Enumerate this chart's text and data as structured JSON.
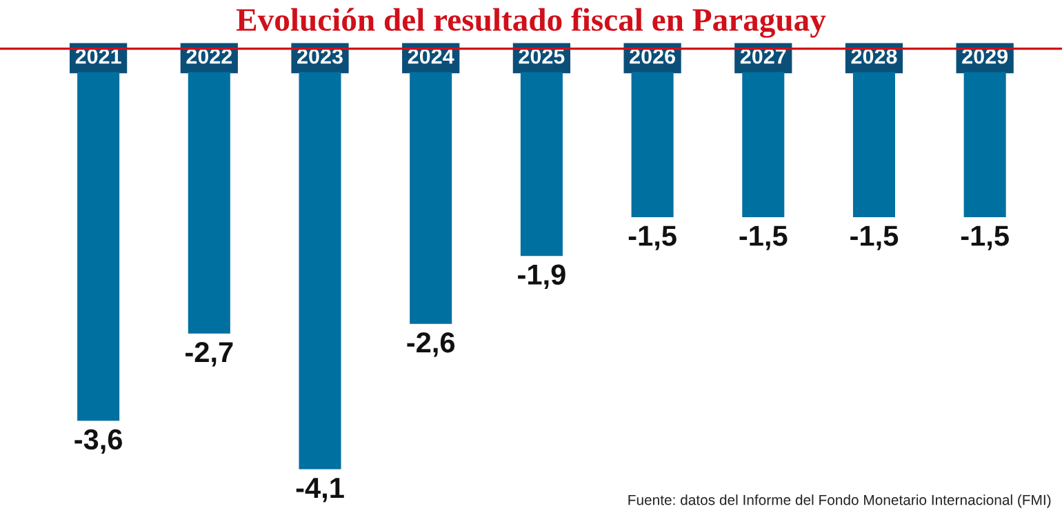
{
  "chart_data": {
    "type": "bar",
    "title": "Evolución del resultado fiscal en Paraguay",
    "categories": [
      "2021",
      "2022",
      "2023",
      "2024",
      "2025",
      "2026",
      "2027",
      "2028",
      "2029"
    ],
    "values": [
      -3.6,
      -2.7,
      -4.1,
      -2.6,
      -1.9,
      -1.5,
      -1.5,
      -1.5,
      -1.5
    ],
    "value_labels": [
      "-3,6",
      "-2,7",
      "-4,1",
      "-2,6",
      "-1,9",
      "-1,5",
      "-1,5",
      "-1,5",
      "-1,5"
    ],
    "color": "#0070a0",
    "annotations": [
      "Fuente: datos del Informe del Fondo Monetario Internacional (FMI)"
    ],
    "grid": false,
    "legend": false
  }
}
